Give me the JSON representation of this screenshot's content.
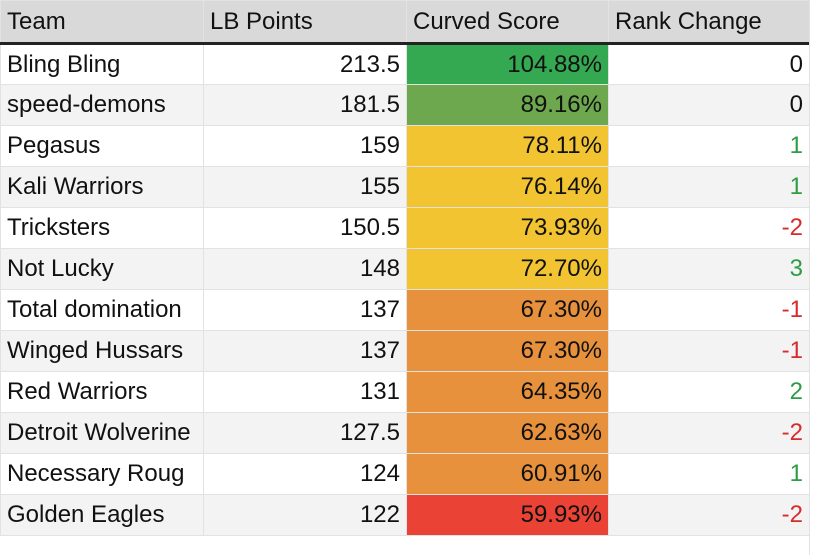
{
  "sheet": {
    "headers": {
      "team": "Team",
      "lb_points": "LB Points",
      "curved_score": "Curved Score",
      "rank_change": "Rank Change"
    },
    "rows": [
      {
        "team": "Bling Bling",
        "lb_points": "213.5",
        "curved_score": "104.88%",
        "rank_change": "0"
      },
      {
        "team": "speed-demons",
        "lb_points": "181.5",
        "curved_score": "89.16%",
        "rank_change": "0"
      },
      {
        "team": "Pegasus",
        "lb_points": "159",
        "curved_score": "78.11%",
        "rank_change": "1"
      },
      {
        "team": "Kali Warriors",
        "lb_points": "155",
        "curved_score": "76.14%",
        "rank_change": "1"
      },
      {
        "team": "Tricksters",
        "lb_points": "150.5",
        "curved_score": "73.93%",
        "rank_change": "-2"
      },
      {
        "team": "Not Lucky",
        "lb_points": "148",
        "curved_score": "72.70%",
        "rank_change": "3"
      },
      {
        "team": "Total domination",
        "lb_points": "137",
        "curved_score": "67.30%",
        "rank_change": "-1"
      },
      {
        "team": "Winged Hussars",
        "lb_points": "137",
        "curved_score": "67.30%",
        "rank_change": "-1"
      },
      {
        "team": "Red Warriors",
        "lb_points": "131",
        "curved_score": "64.35%",
        "rank_change": "2"
      },
      {
        "team": "Detroit Wolverine",
        "lb_points": "127.5",
        "curved_score": "62.63%",
        "rank_change": "-2"
      },
      {
        "team": "Necessary Roug",
        "lb_points": "124",
        "curved_score": "60.91%",
        "rank_change": "1"
      },
      {
        "team": "Golden Eagles",
        "lb_points": "122",
        "curved_score": "59.93%",
        "rank_change": "-2"
      }
    ],
    "colors": {
      "header_bg": "#d9d9d9",
      "alt_row_bg": "#f3f3f3",
      "positive": "#2e9b45",
      "negative": "#d92b2b",
      "heat_top": "#35a852",
      "heat_high": "#6da84e",
      "heat_mid": "#f2c431",
      "heat_low": "#e8913c",
      "heat_min": "#ea4335"
    }
  }
}
